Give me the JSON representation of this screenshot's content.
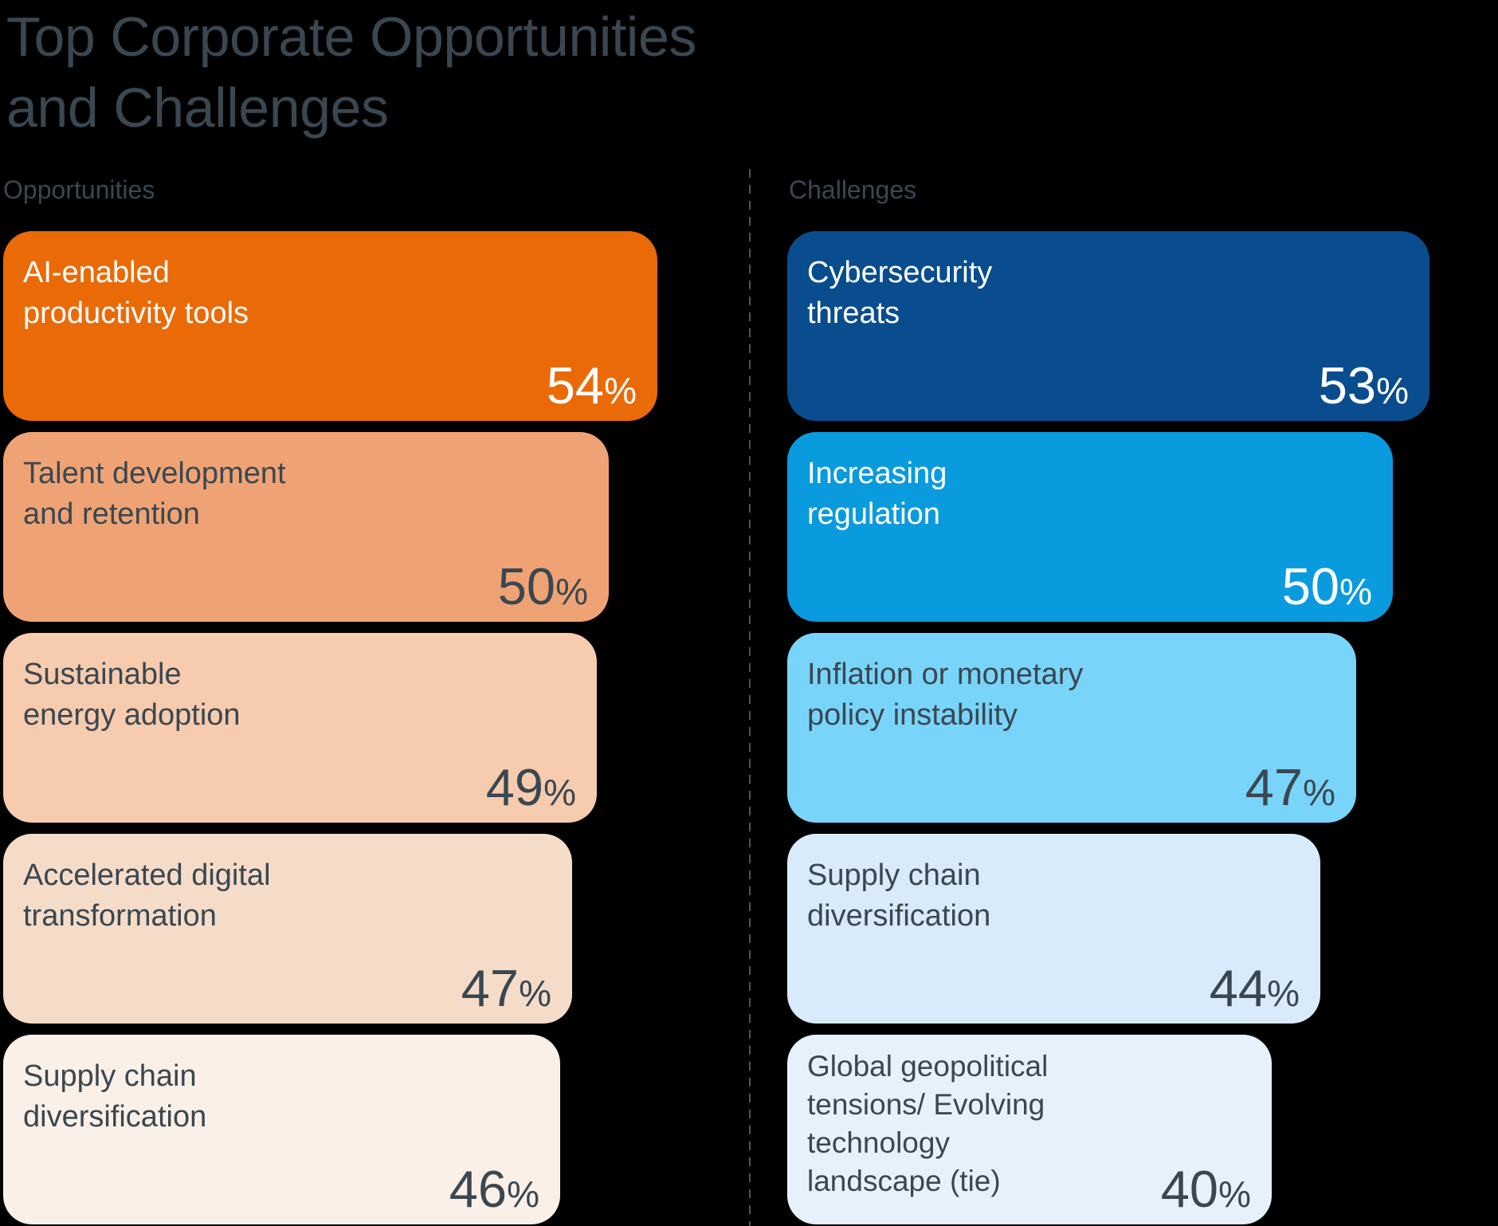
{
  "title": {
    "line1": "Top Corporate Opportunities",
    "line2": "and Challenges"
  },
  "colors": {
    "background": "#000000",
    "heading": "#3A4750",
    "dark_text": "#3A4750",
    "light_text": "#FFFFFF",
    "divider": "#4A555E"
  },
  "columns": [
    {
      "label": "Opportunities",
      "items": [
        {
          "lines": [
            "AI-enabled",
            "productivity tools"
          ],
          "value": 54,
          "unit": "%",
          "bg": "#EA6A08",
          "fg": "#FFFFFF"
        },
        {
          "lines": [
            "Talent development",
            "and retention"
          ],
          "value": 50,
          "unit": "%",
          "bg": "#EFA374",
          "fg": "#3A4750"
        },
        {
          "lines": [
            "Sustainable",
            "energy adoption"
          ],
          "value": 49,
          "unit": "%",
          "bg": "#F6CBAE",
          "fg": "#3A4750"
        },
        {
          "lines": [
            "Accelerated digital",
            "transformation"
          ],
          "value": 47,
          "unit": "%",
          "bg": "#F5DCC9",
          "fg": "#3A4750"
        },
        {
          "lines": [
            "Supply chain",
            "diversification"
          ],
          "value": 46,
          "unit": "%",
          "bg": "#FAF0E7",
          "fg": "#3A4750"
        }
      ]
    },
    {
      "label": "Challenges",
      "items": [
        {
          "lines": [
            "Cybersecurity",
            "threats"
          ],
          "value": 53,
          "unit": "%",
          "bg": "#0A4D8E",
          "fg": "#FFFFFF"
        },
        {
          "lines": [
            "Increasing",
            "regulation"
          ],
          "value": 50,
          "unit": "%",
          "bg": "#0A9BDE",
          "fg": "#FFFFFF"
        },
        {
          "lines": [
            "Inflation or monetary",
            "policy instability"
          ],
          "value": 47,
          "unit": "%",
          "bg": "#79D4FA",
          "fg": "#3A4750"
        },
        {
          "lines": [
            "Supply chain",
            "diversification"
          ],
          "value": 44,
          "unit": "%",
          "bg": "#D9EAFB",
          "fg": "#3A4750"
        },
        {
          "lines": [
            "Global geopolitical",
            "tensions/ Evolving",
            "technology",
            "landscape (tie)"
          ],
          "value": 40,
          "unit": "%",
          "bg": "#E7F1FC",
          "fg": "#3A4750"
        }
      ]
    }
  ],
  "chart_data": {
    "type": "bar",
    "orientation": "horizontal",
    "title": "Top Corporate Opportunities and Challenges",
    "value_unit": "%",
    "xlim": [
      0,
      54
    ],
    "grid": false,
    "legend": "none",
    "groups": [
      {
        "name": "Opportunities",
        "categories": [
          "AI-enabled productivity tools",
          "Talent development and retention",
          "Sustainable energy adoption",
          "Accelerated digital transformation",
          "Supply chain diversification"
        ],
        "values": [
          54,
          50,
          49,
          47,
          46
        ]
      },
      {
        "name": "Challenges",
        "categories": [
          "Cybersecurity threats",
          "Increasing regulation",
          "Inflation or monetary policy instability",
          "Supply chain diversification",
          "Global geopolitical tensions/ Evolving technology landscape (tie)"
        ],
        "values": [
          53,
          50,
          47,
          44,
          40
        ]
      }
    ]
  }
}
